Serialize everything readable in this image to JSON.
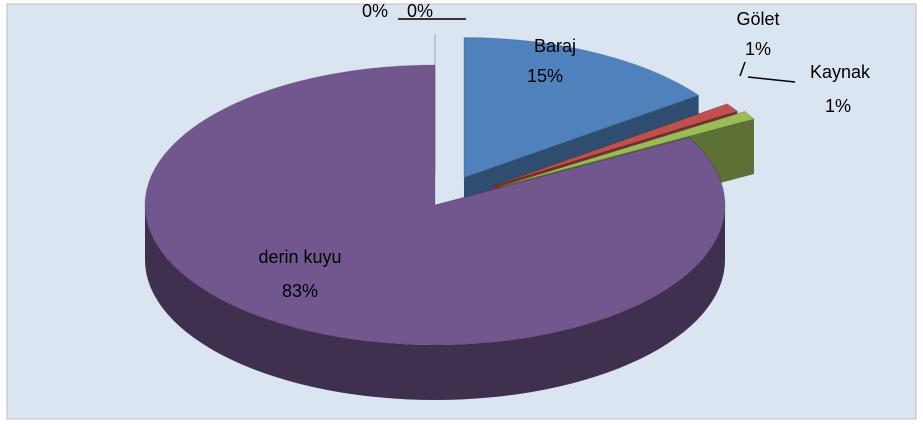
{
  "chart_data": {
    "type": "pie",
    "categories": [
      "Baraj",
      "Gölet",
      "Kaynak",
      "derin kuyu",
      null,
      null
    ],
    "values": [
      15,
      1,
      1,
      83,
      0,
      0
    ],
    "value_labels": [
      "15%",
      "1%",
      "1%",
      "83%",
      "0%",
      "0%"
    ],
    "colors": [
      "#4f81bd",
      "#c0504d",
      "#9bbb59",
      "#72578f",
      "#4bacc6",
      "#f79646"
    ]
  }
}
